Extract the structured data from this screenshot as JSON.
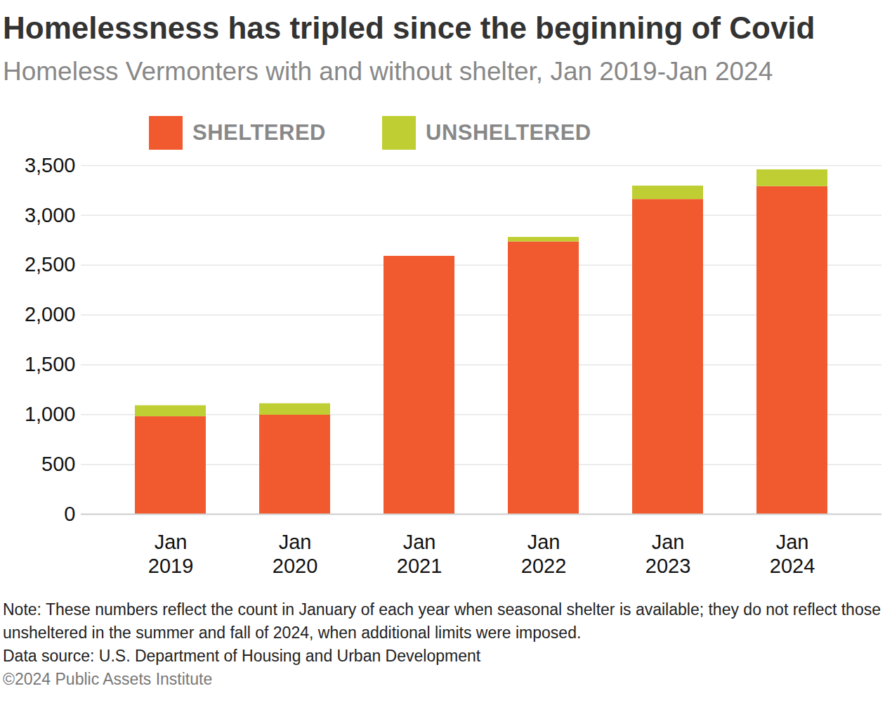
{
  "chart_data": {
    "type": "bar",
    "title": "Homelessness has tripled since the beginning of Covid",
    "subtitle": "Homeless Vermonters with and without shelter, Jan 2019-Jan 2024",
    "categories": [
      "Jan 2019",
      "Jan 2020",
      "Jan 2021",
      "Jan 2022",
      "Jan 2023",
      "Jan 2024"
    ],
    "series": [
      {
        "name": "SHELTERED",
        "color": "#f15a2f",
        "values": [
          980,
          995,
          2590,
          2735,
          3160,
          3290
        ]
      },
      {
        "name": "UNSHELTERED",
        "color": "#bfce32",
        "values": [
          110,
          115,
          0,
          45,
          135,
          168
        ]
      }
    ],
    "stacked": true,
    "ylim": [
      0,
      3500
    ],
    "yticks": [
      0,
      500,
      {
        "value": 1000,
        "label": "1,000"
      },
      {
        "value": 1500,
        "label": "1,500"
      },
      {
        "value": 2000,
        "label": "2,000"
      },
      {
        "value": 2500,
        "label": "2,500"
      },
      {
        "value": 3000,
        "label": "3,000"
      },
      {
        "value": 3500,
        "label": "3,500"
      }
    ],
    "grid": true,
    "legend": "top",
    "notes": [
      "Note: These numbers reflect the count in January of each year when seasonal shelter is available; they do not reflect those unsheltered in the summer and fall of 2024, when additional limits were imposed.",
      "Data source: U.S. Department of Housing and Urban Development",
      "©2024 Public Assets Institute"
    ]
  }
}
